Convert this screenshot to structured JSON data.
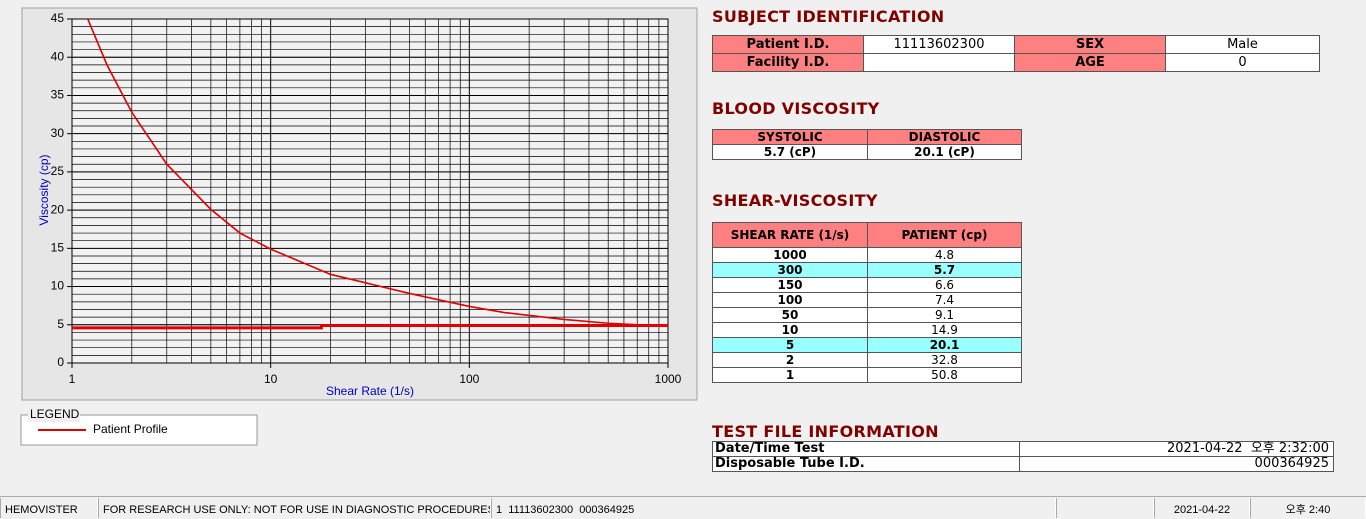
{
  "chart_data": {
    "type": "line",
    "x_label": "Shear Rate (1/s)",
    "y_label": "Viscosity (cp)",
    "log_x": true,
    "xlim": [
      1,
      1000
    ],
    "xticks": [
      1,
      10,
      100,
      1000
    ],
    "ylim": [
      0,
      45
    ],
    "yticks": [
      0,
      5,
      10,
      15,
      20,
      25,
      30,
      35,
      40,
      45
    ],
    "grid": true,
    "legend_title": "LEGEND",
    "series": [
      {
        "name": "Patient Profile",
        "color": "#e00000",
        "x": [
          1.2,
          1.5,
          2,
          3,
          5,
          7,
          10,
          20,
          50,
          100,
          150,
          300,
          500,
          1000
        ],
        "values": [
          45,
          39,
          32.8,
          26,
          20.1,
          17,
          14.9,
          11.6,
          9.1,
          7.4,
          6.6,
          5.7,
          5.2,
          4.8
        ]
      },
      {
        "color": "#e00000",
        "x": [
          1,
          18,
          18,
          1000
        ],
        "values": [
          4.6,
          4.6,
          4.9,
          4.9
        ]
      }
    ]
  },
  "subject_identification": {
    "title": "SUBJECT IDENTIFICATION",
    "fields": [
      {
        "label": "Patient I.D.",
        "value": "11113602300"
      },
      {
        "label": "SEX",
        "value": "Male"
      },
      {
        "label": "Facility I.D."
      },
      {
        "label": "AGE",
        "value": "0"
      }
    ]
  },
  "blood_viscosity": {
    "title": "BLOOD VISCOSITY",
    "headers": [
      "SYSTOLIC",
      "DIASTOLIC"
    ],
    "values": [
      "5.7 (cP)",
      "20.1 (cP)"
    ]
  },
  "shear_viscosity": {
    "title": "SHEAR-VISCOSITY",
    "headers": [
      "SHEAR RATE (1/s)",
      "PATIENT (cp)"
    ],
    "rows": [
      {
        "cells": [
          1000,
          4.8
        ]
      },
      {
        "cells": [
          300,
          5.7
        ],
        "highlighted": true
      },
      {
        "cells": [
          150,
          6.6
        ]
      },
      {
        "cells": [
          100,
          7.4
        ]
      },
      {
        "cells": [
          50,
          9.1
        ]
      },
      {
        "cells": [
          10,
          14.9
        ]
      },
      {
        "cells": [
          5,
          20.1
        ],
        "highlighted": true
      },
      {
        "cells": [
          2,
          32.8
        ]
      },
      {
        "cells": [
          1,
          50.8
        ]
      }
    ]
  },
  "test_file_information": {
    "title": "TEST FILE INFORMATION",
    "rows": [
      [
        "Date/Time Test",
        "2021-04-22  오후 2:32:00"
      ],
      [
        "Disposable Tube I.D.",
        "000364925"
      ]
    ]
  },
  "status_bar": [
    "HEMOVISTER",
    "FOR RESEARCH USE ONLY: NOT FOR USE IN DIAGNOSTIC PROCEDURES",
    "1  11113602300  000364925",
    "2021-04-22",
    "오후 2:40"
  ]
}
